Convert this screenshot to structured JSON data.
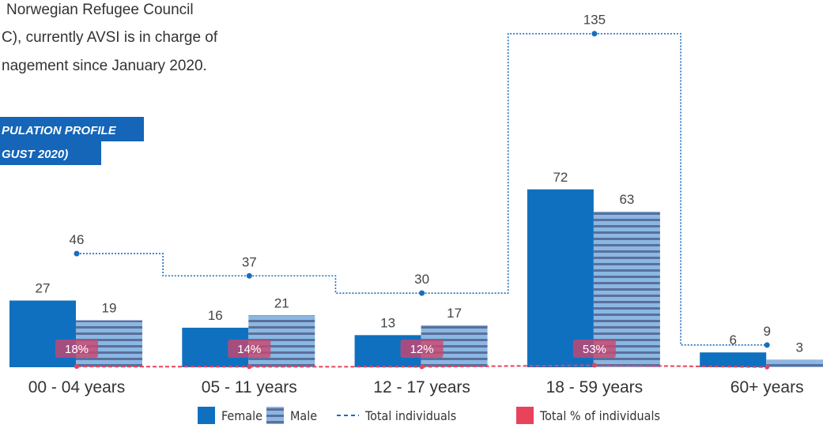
{
  "text": {
    "lines": [
      "Norwegian Refugee Council",
      "C), currently AVSI is in charge of",
      "nagement since January 2020."
    ],
    "header": [
      "PULATION PROFILE",
      "GUST 2020)"
    ]
  },
  "chart_data": {
    "type": "bar",
    "categories": [
      "00 - 04 years",
      "05 - 11 years",
      "12 - 17 years",
      "18 - 59 years",
      "60+ years"
    ],
    "series": [
      {
        "name": "Female",
        "color": "#1070c0",
        "values": [
          27,
          16,
          13,
          72,
          6
        ]
      },
      {
        "name": "Male",
        "color": "#8ab8e2",
        "values": [
          19,
          21,
          17,
          63,
          3
        ]
      },
      {
        "name": "Total individuals",
        "color": "#1a6cbf",
        "type": "step",
        "values": [
          46,
          37,
          30,
          135,
          9
        ]
      },
      {
        "name": "Total % of individuals",
        "color": "#e8435a",
        "type": "line",
        "axis": "y2",
        "values": [
          18,
          14,
          12,
          53,
          4
        ],
        "value_labels": [
          "18%",
          "14%",
          "12%",
          "53%",
          null
        ]
      }
    ],
    "ylim": [
      0,
      148
    ],
    "y2lim": [
      0,
      10000
    ],
    "legend": "bottom"
  }
}
